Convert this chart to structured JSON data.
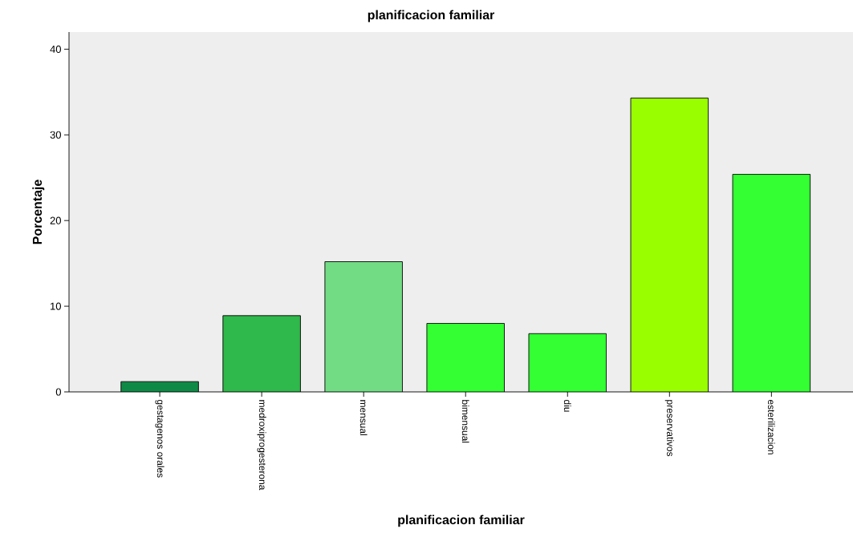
{
  "chart_data": {
    "type": "bar",
    "title": "planificacion familiar",
    "xlabel": "planificacion familiar",
    "ylabel": "Porcentaje",
    "categories": [
      "gestagenos orales",
      "medroxiprogesterona",
      "mensual",
      "bimensual",
      "diu",
      "preservativos",
      "esterilizacion"
    ],
    "values": [
      1.2,
      8.9,
      15.2,
      8.0,
      6.8,
      34.3,
      25.4
    ],
    "colors": [
      "#0e8a46",
      "#2fb84b",
      "#72dc85",
      "#33ff33",
      "#33ff33",
      "#99ff00",
      "#33ff33"
    ],
    "ylim": [
      0,
      42
    ],
    "yticks": [
      0,
      10,
      20,
      30,
      40
    ],
    "grid": false
  }
}
